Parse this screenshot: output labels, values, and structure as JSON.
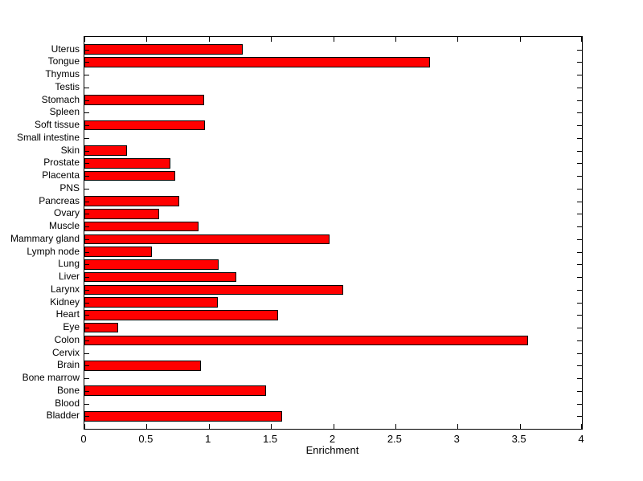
{
  "figure": {
    "background_color": "#FFFFFF",
    "axis_color": "#000000",
    "text_color": "#000000"
  },
  "chart_data": {
    "type": "bar",
    "orientation": "horizontal",
    "title": "",
    "xlabel": "Enrichment",
    "ylabel": "",
    "xlim": [
      0,
      4
    ],
    "grid": false,
    "legend": null,
    "bar_color": "#FF0000",
    "bar_edge_color": "#000000",
    "xticks": {
      "values": [
        0,
        0.5,
        1,
        1.5,
        2,
        2.5,
        3,
        3.5,
        4
      ],
      "labels": [
        "0",
        "0.5",
        "1",
        "1.5",
        "2",
        "2.5",
        "3",
        "3.5",
        "4"
      ]
    },
    "categories_top_to_bottom": [
      "Uterus",
      "Tongue",
      "Thymus",
      "Testis",
      "Stomach",
      "Spleen",
      "Soft tissue",
      "Small intestine",
      "Skin",
      "Prostate",
      "Placenta",
      "PNS",
      "Pancreas",
      "Ovary",
      "Muscle",
      "Mammary gland",
      "Lymph node",
      "Lung",
      "Liver",
      "Larynx",
      "Kidney",
      "Heart",
      "Eye",
      "Colon",
      "Cervix",
      "Brain",
      "Bone marrow",
      "Bone",
      "Blood",
      "Bladder"
    ],
    "values_top_to_bottom": [
      1.27,
      2.78,
      0,
      0,
      0.96,
      0,
      0.97,
      0,
      0.34,
      0.69,
      0.73,
      0,
      0.76,
      0.6,
      0.92,
      1.97,
      0.54,
      1.08,
      1.22,
      2.08,
      1.07,
      1.56,
      0.27,
      3.57,
      0,
      0.94,
      0,
      1.46,
      0,
      1.59
    ]
  }
}
